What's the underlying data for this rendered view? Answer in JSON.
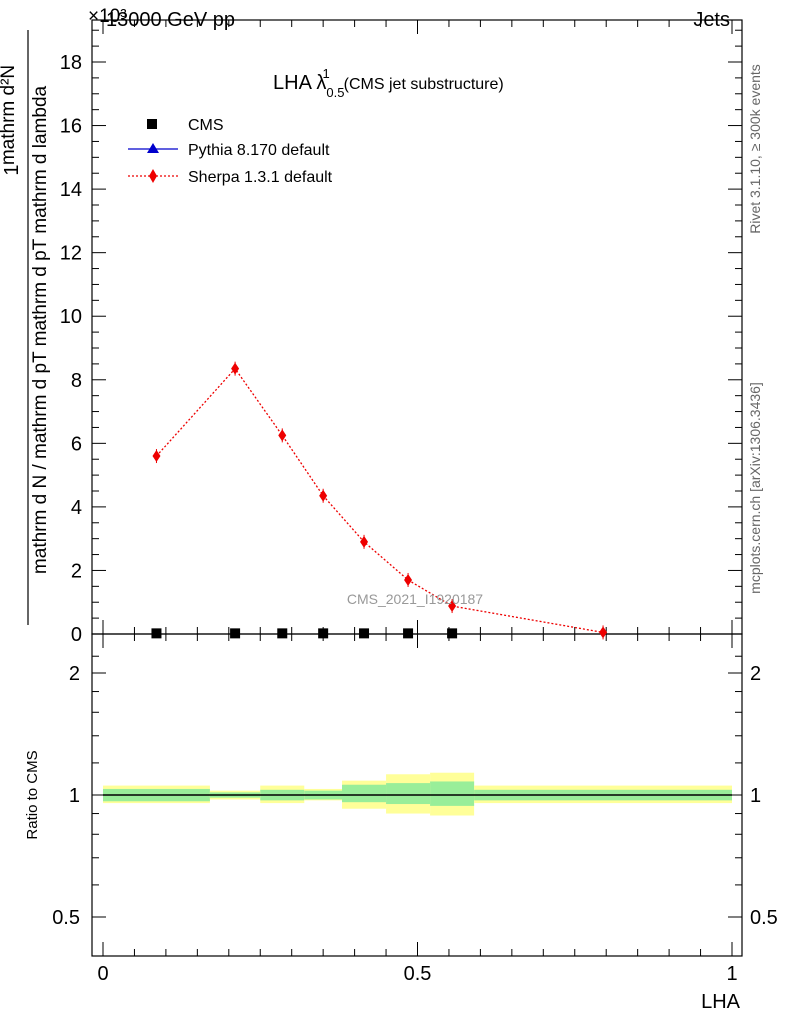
{
  "header": {
    "energy_label": "13000 GeV pp",
    "process_label": "Jets",
    "exponent_label": "×10³"
  },
  "sidebar": {
    "rivet_label": "Rivet 3.1.10, ≥ 300k events",
    "mcplots_label": "mcplots.cern.ch [arXiv:1306.3436]"
  },
  "main_plot": {
    "title": "LHA λ",
    "title_sup": "1",
    "title_sub": "0.5",
    "title_suffix": "(CMS jet substructure)",
    "ylabel_top": "1",
    "ylabel_num": "mathrm d²N",
    "ylabel_den": "mathrm d N / mathrm d pT mathrm d pT mathrm d lambda",
    "watermark": "CMS_2021_I1920187",
    "legend": [
      {
        "name": "CMS",
        "marker": "square",
        "color": "#000000"
      },
      {
        "name": "Pythia 8.170 default",
        "marker": "triangle",
        "color": "#0000cc"
      },
      {
        "name": "Sherpa 1.3.1 default",
        "marker": "diamond",
        "color": "#ee0000"
      }
    ]
  },
  "ratio_plot": {
    "ylabel": "Ratio to CMS",
    "xlabel": "LHA"
  },
  "colors": {
    "cms": "#000000",
    "pythia": "#0000cc",
    "sherpa": "#ee0000",
    "band_inner": "#99ee99",
    "band_outer": "#ffff99"
  },
  "chart_data": [
    {
      "type": "scatter",
      "title": "LHA λ^1_0.5 (CMS jet substructure)",
      "xlabel": "LHA",
      "ylabel": "1 / mathrm d N / mathrm d pT mathrm d pT mathrm d lambda · mathrm d²N",
      "xlim": [
        0,
        1
      ],
      "ylim": [
        0,
        19
      ],
      "y_scale_label": "×10³",
      "yticks": [
        0,
        2,
        4,
        6,
        8,
        10,
        12,
        14,
        16,
        18
      ],
      "series": [
        {
          "name": "CMS",
          "x": [
            0.085,
            0.21,
            0.285,
            0.35,
            0.415,
            0.485,
            0.555
          ],
          "y": [
            0.02,
            0.02,
            0.02,
            0.02,
            0.02,
            0.02,
            0.02
          ]
        },
        {
          "name": "Sherpa 1.3.1 default",
          "x": [
            0.085,
            0.21,
            0.285,
            0.35,
            0.415,
            0.485,
            0.555,
            0.795
          ],
          "y": [
            5.6,
            8.35,
            6.25,
            4.35,
            2.9,
            1.7,
            0.88,
            0.05
          ]
        }
      ]
    },
    {
      "type": "area",
      "title": "",
      "xlabel": "LHA",
      "ylabel": "Ratio to CMS",
      "xlim": [
        0,
        1
      ],
      "ylim": [
        0.4,
        2.3
      ],
      "y_scale": "log",
      "yticks": [
        0.5,
        1,
        2
      ],
      "xticks": [
        0,
        0.5,
        1
      ],
      "bins": [
        0,
        0.17,
        0.25,
        0.32,
        0.38,
        0.45,
        0.52,
        0.59,
        1.0
      ],
      "stat_band": [
        [
          0.965,
          1.035
        ],
        [
          0.985,
          1.015
        ],
        [
          0.97,
          1.03
        ],
        [
          0.975,
          1.025
        ],
        [
          0.96,
          1.06
        ],
        [
          0.95,
          1.07
        ],
        [
          0.94,
          1.08
        ],
        [
          0.97,
          1.03
        ]
      ],
      "total_band": [
        [
          0.955,
          1.055
        ],
        [
          0.975,
          1.025
        ],
        [
          0.955,
          1.055
        ],
        [
          0.97,
          1.035
        ],
        [
          0.925,
          1.085
        ],
        [
          0.9,
          1.125
        ],
        [
          0.89,
          1.135
        ],
        [
          0.955,
          1.055
        ]
      ]
    }
  ]
}
